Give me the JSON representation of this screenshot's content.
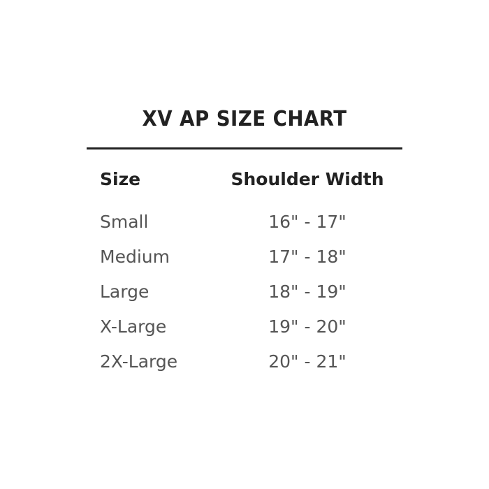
{
  "title": "XV AP SIZE CHART",
  "columns": [
    "Size",
    "Shoulder Width"
  ],
  "rows": [
    [
      "Small",
      "16\" - 17\""
    ],
    [
      "Medium",
      "17\" - 18\""
    ],
    [
      "Large",
      "18\" - 19\""
    ],
    [
      "X-Large",
      "19\" - 20\""
    ],
    [
      "2X-Large",
      "20\" - 21\""
    ]
  ],
  "colors": {
    "title": "#222222",
    "body": "#555555",
    "rule": "#222222"
  }
}
